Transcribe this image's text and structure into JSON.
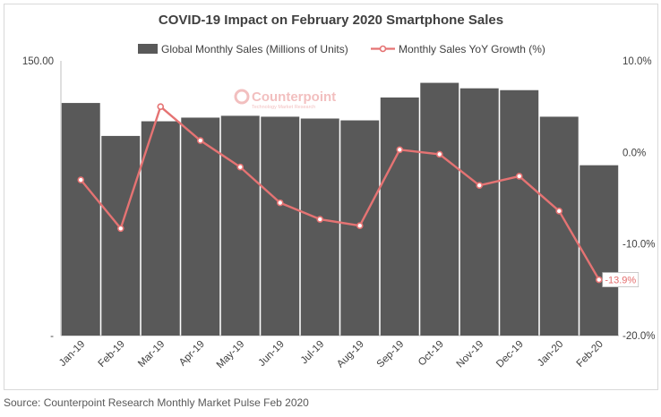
{
  "chart_data": {
    "type": "bar",
    "title": "COVID-19 Impact on February 2020 Smartphone Sales",
    "categories": [
      "Jan-19",
      "Feb-19",
      "Mar-19",
      "Apr-19",
      "May-19",
      "Jun-19",
      "Jul-19",
      "Aug-19",
      "Sep-19",
      "Oct-19",
      "Nov-19",
      "Dec-19",
      "Jan-20",
      "Feb-20"
    ],
    "series": [
      {
        "name": "Global Monthly Sales (Millions of Units)",
        "type": "bar",
        "axis": "left",
        "color": "#595959",
        "values": [
          127,
          109,
          117,
          119,
          120,
          119.5,
          118.5,
          117.5,
          130,
          138,
          135,
          134,
          119.5,
          93
        ]
      },
      {
        "name": "Monthly Sales YoY Growth (%)",
        "type": "line",
        "axis": "right",
        "color": "#e57373",
        "values": [
          -3.0,
          -8.3,
          5.0,
          1.3,
          -1.6,
          -5.5,
          -7.3,
          -8.0,
          0.3,
          -0.2,
          -3.6,
          -2.6,
          -6.4,
          -13.9
        ]
      }
    ],
    "ylim_left": [
      0,
      150
    ],
    "ylim_right": [
      -20,
      10
    ],
    "left_axis_ticks": [
      "150.00",
      "-"
    ],
    "right_axis_ticks": [
      "10.0%",
      "0.0%",
      "-10.0%",
      "-20.0%"
    ],
    "data_labels": [
      {
        "series": 1,
        "index": 13,
        "text": "-13.9%"
      }
    ],
    "legend_position": "top",
    "grid": false
  },
  "watermark": {
    "brand": "Counterpoint",
    "tagline": "Technology Market Research"
  },
  "source": "Source: Counterpoint Research Monthly Market Pulse Feb 2020"
}
